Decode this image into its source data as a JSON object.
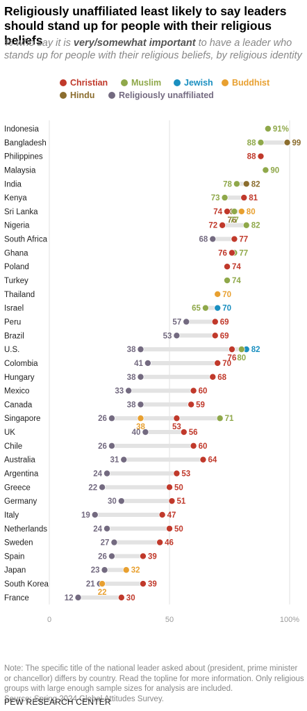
{
  "header": {
    "title": "Religiously unaffiliated least likely to say leaders should stand up for people with their religious beliefs",
    "subtitle_pre": "% who say it is ",
    "subtitle_emph": "very/somewhat important",
    "subtitle_post": " to have a leader who stands up for people with their religious beliefs, by religious identity"
  },
  "colors": {
    "Christian": "#c0392b",
    "Muslim": "#8fa84a",
    "Jewish": "#1a8fc0",
    "Buddhist": "#e8a030",
    "Hindu": "#8b6d2e",
    "Religiously unaffiliated": "#736a80"
  },
  "chart_data": {
    "type": "dot",
    "xlim": [
      0,
      100
    ],
    "x_ticks": [
      {
        "value": 0,
        "label": "0"
      },
      {
        "value": 50,
        "label": "50"
      },
      {
        "value": 100,
        "label": "100%"
      }
    ],
    "series_names": [
      "Christian",
      "Muslim",
      "Jewish",
      "Buddhist",
      "Hindu",
      "Religiously unaffiliated"
    ],
    "rows": [
      {
        "country": "Indonesia",
        "values": {
          "Muslim": 91
        },
        "labels": {
          "Muslim": "91%"
        }
      },
      {
        "country": "Bangladesh",
        "values": {
          "Muslim": 88,
          "Hindu": 99
        }
      },
      {
        "country": "Philippines",
        "values": {
          "Christian": 88
        }
      },
      {
        "country": "Malaysia",
        "values": {
          "Muslim": 90
        }
      },
      {
        "country": "India",
        "values": {
          "Muslim": 78,
          "Hindu": 82
        }
      },
      {
        "country": "Kenya",
        "values": {
          "Muslim": 73,
          "Christian": 81
        }
      },
      {
        "country": "Sri Lanka",
        "values": {
          "Christian": 74,
          "Hindu": 76,
          "Muslim": 77,
          "Buddhist": 80
        }
      },
      {
        "country": "Nigeria",
        "values": {
          "Christian": 72,
          "Muslim": 82
        }
      },
      {
        "country": "South Africa",
        "values": {
          "Religiously unaffiliated": 68,
          "Christian": 77
        }
      },
      {
        "country": "Ghana",
        "values": {
          "Christian": 76,
          "Muslim": 77
        }
      },
      {
        "country": "Poland",
        "values": {
          "Christian": 74
        }
      },
      {
        "country": "Turkey",
        "values": {
          "Muslim": 74
        }
      },
      {
        "country": "Thailand",
        "values": {
          "Buddhist": 70
        }
      },
      {
        "country": "Israel",
        "values": {
          "Muslim": 65,
          "Jewish": 70
        }
      },
      {
        "country": "Peru",
        "values": {
          "Religiously unaffiliated": 57,
          "Christian": 69
        }
      },
      {
        "country": "Brazil",
        "values": {
          "Religiously unaffiliated": 53,
          "Christian": 69
        }
      },
      {
        "country": "U.S.",
        "values": {
          "Religiously unaffiliated": 38,
          "Christian": 76,
          "Muslim": 80,
          "Jewish": 82
        }
      },
      {
        "country": "Colombia",
        "values": {
          "Religiously unaffiliated": 41,
          "Christian": 70
        }
      },
      {
        "country": "Hungary",
        "values": {
          "Religiously unaffiliated": 38,
          "Christian": 68
        }
      },
      {
        "country": "Mexico",
        "values": {
          "Religiously unaffiliated": 33,
          "Christian": 60
        }
      },
      {
        "country": "Canada",
        "values": {
          "Religiously unaffiliated": 38,
          "Christian": 59
        }
      },
      {
        "country": "Singapore",
        "values": {
          "Religiously unaffiliated": 26,
          "Buddhist": 38,
          "Christian": 53,
          "Muslim": 71
        }
      },
      {
        "country": "UK",
        "values": {
          "Religiously unaffiliated": 40,
          "Christian": 56
        }
      },
      {
        "country": "Chile",
        "values": {
          "Religiously unaffiliated": 26,
          "Christian": 60
        }
      },
      {
        "country": "Australia",
        "values": {
          "Religiously unaffiliated": 31,
          "Christian": 64
        }
      },
      {
        "country": "Argentina",
        "values": {
          "Religiously unaffiliated": 24,
          "Christian": 53
        }
      },
      {
        "country": "Greece",
        "values": {
          "Religiously unaffiliated": 22,
          "Christian": 50
        }
      },
      {
        "country": "Germany",
        "values": {
          "Religiously unaffiliated": 30,
          "Christian": 51
        }
      },
      {
        "country": "Italy",
        "values": {
          "Religiously unaffiliated": 19,
          "Christian": 47
        }
      },
      {
        "country": "Netherlands",
        "values": {
          "Religiously unaffiliated": 24,
          "Christian": 50
        }
      },
      {
        "country": "Sweden",
        "values": {
          "Religiously unaffiliated": 27,
          "Christian": 46
        }
      },
      {
        "country": "Spain",
        "values": {
          "Religiously unaffiliated": 26,
          "Christian": 39
        }
      },
      {
        "country": "Japan",
        "values": {
          "Religiously unaffiliated": 23,
          "Buddhist": 32
        }
      },
      {
        "country": "South Korea",
        "values": {
          "Religiously unaffiliated": 21,
          "Buddhist": 22,
          "Christian": 39
        }
      },
      {
        "country": "France",
        "values": {
          "Religiously unaffiliated": 12,
          "Christian": 30
        }
      }
    ]
  },
  "notes": [
    "Note: The specific title of the national leader asked about (president, prime minister or chancellor) differs by country. Read the topline for more information. Only religious groups with large enough sample sizes for analysis are included.",
    "Source: Spring 2024 Global Attitudes Survey."
  ],
  "source_org": "PEW RESEARCH CENTER"
}
